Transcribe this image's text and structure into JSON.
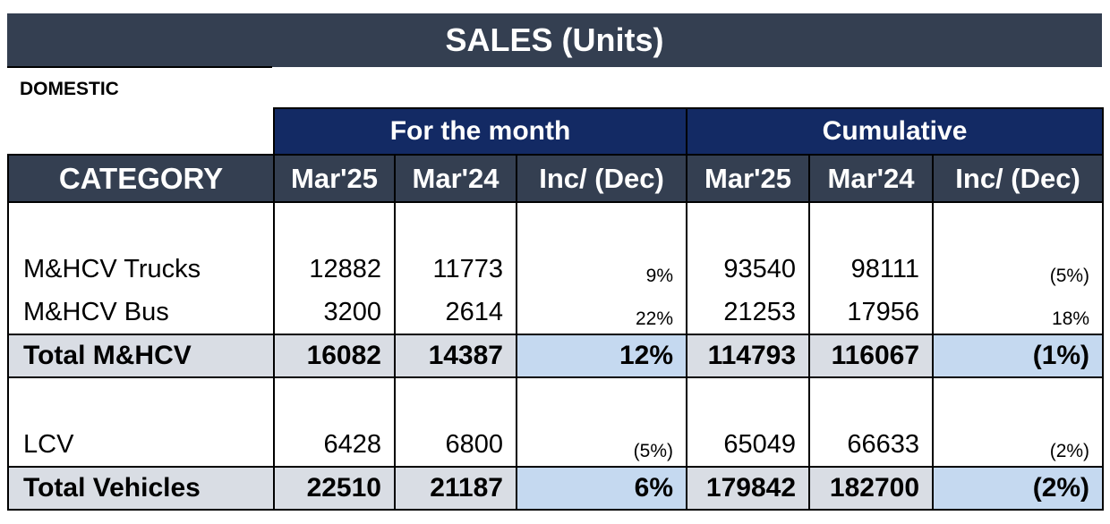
{
  "title": "SALES (Units)",
  "section": "DOMESTIC",
  "groups": {
    "month": "For the month",
    "cumulative": "Cumulative"
  },
  "columns": {
    "category": "CATEGORY",
    "m_cur": "Mar'25",
    "m_prev": "Mar'24",
    "m_change": "Inc/ (Dec)",
    "c_cur": "Mar'25",
    "c_prev": "Mar'24",
    "c_change": "Inc/ (Dec)"
  },
  "rows": {
    "trucks": {
      "label": "M&HCV Trucks",
      "m_cur": "12882",
      "m_prev": "11773",
      "m_change": "9%",
      "c_cur": "93540",
      "c_prev": "98111",
      "c_change": "(5%)"
    },
    "bus": {
      "label": "M&HCV Bus",
      "m_cur": "3200",
      "m_prev": "2614",
      "m_change": "22%",
      "c_cur": "21253",
      "c_prev": "17956",
      "c_change": "18%"
    },
    "total_mhcv": {
      "label": "Total M&HCV",
      "m_cur": "16082",
      "m_prev": "14387",
      "m_change": "12%",
      "c_cur": "114793",
      "c_prev": "116067",
      "c_change": "(1%)"
    },
    "lcv": {
      "label": "LCV",
      "m_cur": "6428",
      "m_prev": "6800",
      "m_change": "(5%)",
      "c_cur": "65049",
      "c_prev": "66633",
      "c_change": "(2%)"
    },
    "total_vehicles": {
      "label": "Total Vehicles",
      "m_cur": "22510",
      "m_prev": "21187",
      "m_change": "6%",
      "c_cur": "179842",
      "c_prev": "182700",
      "c_change": "(2%)"
    }
  },
  "colors": {
    "title_bg": "#343f51",
    "group_header_bg": "#132a64",
    "total_row_bg": "#d9dde4",
    "highlight_bg": "#c5d9f0"
  }
}
